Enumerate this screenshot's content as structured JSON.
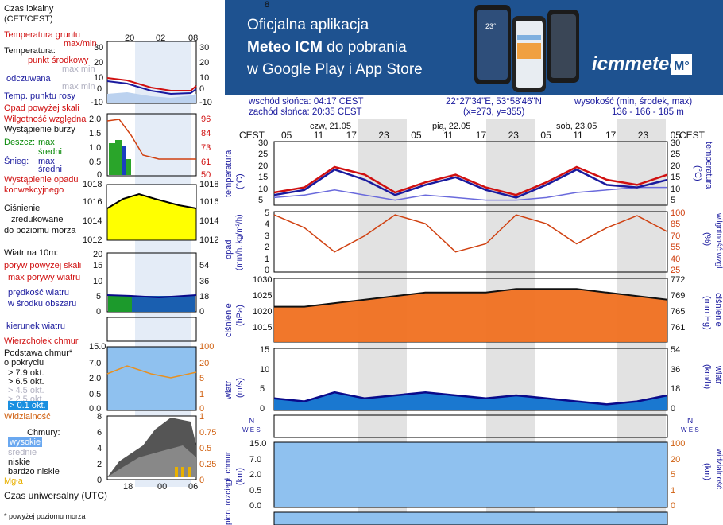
{
  "banner": {
    "line1": "Oficjalna aplikacja",
    "line2_bold": "Meteo ICM",
    "line2_rest": " do pobrania",
    "line3": "w Google Play i App Store",
    "logo_text": "icmmeteo",
    "logo_badge": "M°",
    "phone_temp": "23°"
  },
  "legend": {
    "local_time": "Czas lokalny",
    "local_time_zone": "(CET/CEST)",
    "local_ticks": [
      "20",
      "02",
      "08"
    ],
    "soil_temp": "Temperatura gruntu",
    "soil_maxmin": "max/min",
    "temperature": "Temperatura:",
    "midpoint": "punkt środkowy",
    "max_min_1": "max min",
    "felt": "odczuwana",
    "max_min_2": "max min",
    "dew_point": "Temp. punktu rosy",
    "temp_ticks": [
      "30",
      "20",
      "10",
      "0",
      "-10"
    ],
    "precip_above": "Opad powyżej skali",
    "humidity": "Wilgotność względna",
    "storm": "Wystąpienie burzy",
    "rain": "Deszcz:",
    "max": "max",
    "mean": "średni",
    "snow": "Śnieg:",
    "precip_occ": "Wystąpienie opadu",
    "convective": "konwekcyjnego",
    "precip_ticks": [
      "2.0",
      "1.5",
      "1.0",
      "0.5",
      "0"
    ],
    "hum_ticks": [
      "96",
      "84",
      "73",
      "61",
      "50"
    ],
    "pressure_1": "Ciśnienie",
    "pressure_2": "zredukowane",
    "pressure_3": "do poziomu morza",
    "pres_ticks": [
      "1018",
      "1016",
      "1014",
      "1012"
    ],
    "wind_10m": "Wiatr na 10m:",
    "gust_above": "poryw powyżej skali",
    "gust_max": "max porywy wiatru",
    "wind_speed": "prędkość wiatru",
    "wind_area": "w środku obszaru",
    "wind_ticks": [
      "20",
      "15",
      "10",
      "5",
      "0"
    ],
    "wind_kmh": [
      "72",
      "54",
      "36",
      "18",
      "0"
    ],
    "wind_dir": "kierunek wiatru",
    "cloud_top": "Wierzchołek chmur",
    "cloud_base_1": "Podstawa chmur*",
    "cloud_base_2": "o pokryciu",
    "okt": [
      "> 7.9 okt.",
      "> 6.5 okt.",
      "> 4.5 okt.",
      "> 2.5 okt.",
      "> 0.1 okt."
    ],
    "base_ticks": [
      "15.0",
      "7.0",
      "2.0",
      "0.5",
      "0.0"
    ],
    "base_right": [
      "100",
      "20",
      "5",
      "1",
      "0"
    ],
    "visibility": "Widzialność",
    "clouds": "Chmury:",
    "high": "wysokie",
    "medium": "średnie",
    "low": "niskie",
    "very_low": "bardzo niskie",
    "fog": "Mgła",
    "cloud_ticks": [
      "8",
      "6",
      "4",
      "2",
      "0"
    ],
    "cloud_right": [
      "1",
      "0.75",
      "0.5",
      "0.25",
      "0"
    ],
    "utc": "Czas uniwersalny (UTC)",
    "utc_ticks": [
      "18",
      "00",
      "06"
    ],
    "footnote": "* powyżej poziomu morza"
  },
  "info": {
    "sunrise": "wschód słońca: 04:17 CEST",
    "sunset": "zachód słońca: 20:35 CEST",
    "coords": "22°27'34\"E, 53°58'46\"N",
    "grid": "(x=273,  y=355)",
    "height_label": "wysokość (min, środek, max)",
    "height_values": "136 - 166 - 185 m"
  },
  "axis": {
    "tz": "CEST",
    "days": [
      "czw, 21.05",
      "pią, 22.05",
      "sob, 23.05"
    ],
    "hours": [
      "05",
      "11",
      "17",
      "23",
      "05",
      "11",
      "17",
      "23",
      "05",
      "11",
      "17",
      "23",
      "05"
    ]
  },
  "panels": {
    "temperature": {
      "label": "temperatura",
      "unit": "(°C)",
      "ticks": [
        "30",
        "25",
        "20",
        "15",
        "10",
        "5"
      ]
    },
    "precip": {
      "label": "opad",
      "unit": "(mm/h, kg/m²/h)",
      "ticks": [
        "5",
        "4",
        "3",
        "2",
        "1",
        "0"
      ],
      "right_label": "wilgotność wzgl.",
      "right_unit": "(%)",
      "right_ticks": [
        "100",
        "85",
        "70",
        "55",
        "40",
        "25"
      ]
    },
    "pressure": {
      "label": "ciśnienie",
      "unit": "(hPa)",
      "ticks": [
        "1030",
        "1025",
        "1020",
        "1015"
      ],
      "right_unit": "(mm Hg)",
      "right_ticks": [
        "772",
        "769",
        "765",
        "761"
      ]
    },
    "wind": {
      "label": "wiatr",
      "unit": "(m/s)",
      "ticks": [
        "15",
        "10",
        "5",
        "0"
      ],
      "right_unit": "(km/h)",
      "right_ticks": [
        "54",
        "36",
        "18",
        "0"
      ]
    },
    "direction": {
      "rose": "N",
      "rose2": "W E S"
    },
    "cloudbase": {
      "label": "pion. rozciągł. chmur",
      "unit": "(km)",
      "ticks": [
        "15.0",
        "7.0",
        "2.0",
        "0.5",
        "0.0"
      ],
      "right_label": "widzialność",
      "right_unit": "(km)",
      "right_ticks": [
        "100",
        "20",
        "5",
        "1",
        "0"
      ]
    },
    "clouds": {
      "ticks": [
        "8"
      ]
    }
  },
  "chart_data": {
    "type": "line",
    "x_hours_from_start": "CEST, 21.05 00:00 to 24.05 ~08:00",
    "x": [
      "21.05 02:00",
      "21.05 08:00",
      "21.05 14:00",
      "21.05 20:00",
      "22.05 02:00",
      "22.05 08:00",
      "22.05 14:00",
      "22.05 20:00",
      "23.05 02:00",
      "23.05 08:00",
      "23.05 14:00",
      "23.05 20:00",
      "24.05 02:00",
      "24.05 08:00"
    ],
    "series": [
      {
        "name": "punkt środkowy",
        "values": [
          10,
          12,
          20,
          17,
          10,
          14,
          17,
          12,
          9,
          14,
          20,
          15,
          13,
          17
        ]
      },
      {
        "name": "odczuwana",
        "values": [
          9,
          11,
          19,
          15,
          9,
          13,
          16,
          11,
          8,
          13,
          19,
          13,
          12,
          15
        ]
      },
      {
        "name": "Temp. punktu rosy",
        "values": [
          8,
          9,
          11,
          9,
          7,
          9,
          8,
          7,
          7,
          8,
          10,
          11,
          12,
          12
        ]
      },
      {
        "name": "Wilgotność względna",
        "values": [
          96,
          80,
          50,
          70,
          96,
          85,
          50,
          60,
          96,
          85,
          60,
          80,
          95,
          75
        ]
      },
      {
        "name": "Ciśnienie",
        "values": [
          1022,
          1022,
          1023,
          1024,
          1025,
          1026,
          1026,
          1026,
          1027,
          1027,
          1027,
          1026,
          1025,
          1024
        ]
      },
      {
        "name": "prędkość wiatru",
        "values": [
          4,
          3,
          6,
          4,
          5,
          6,
          5,
          4,
          5,
          4,
          3,
          2,
          3,
          5
        ]
      }
    ],
    "ylim_temperature": [
      5,
      30
    ],
    "ylim_pressure": [
      1012,
      1030
    ]
  }
}
